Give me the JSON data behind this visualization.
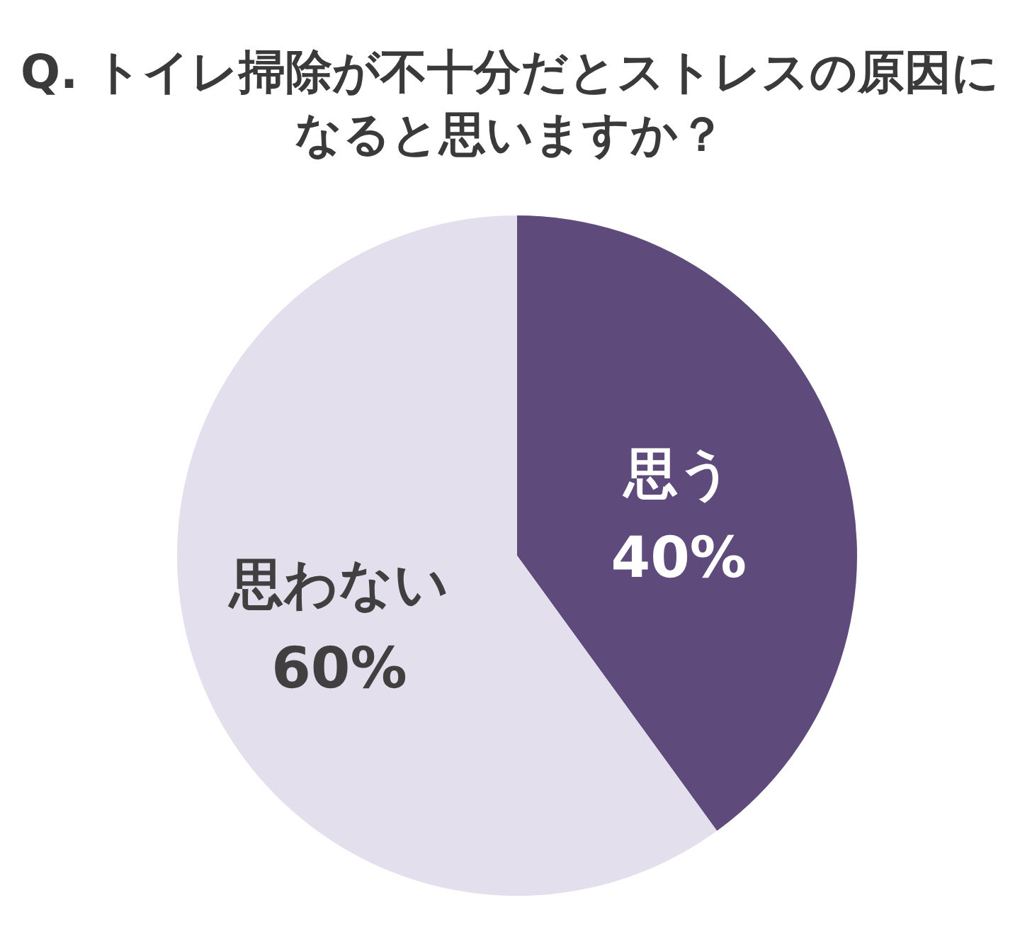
{
  "chart_data": {
    "type": "pie",
    "title": "Q. トイレ掃除が不十分だとストレスの原因になると思いますか？",
    "categories": [
      "思う",
      "思わない"
    ],
    "values": [
      40,
      60
    ],
    "value_labels": [
      "40%",
      "60%"
    ],
    "colors": [
      "#5e4a7b",
      "#e4dfec"
    ]
  }
}
